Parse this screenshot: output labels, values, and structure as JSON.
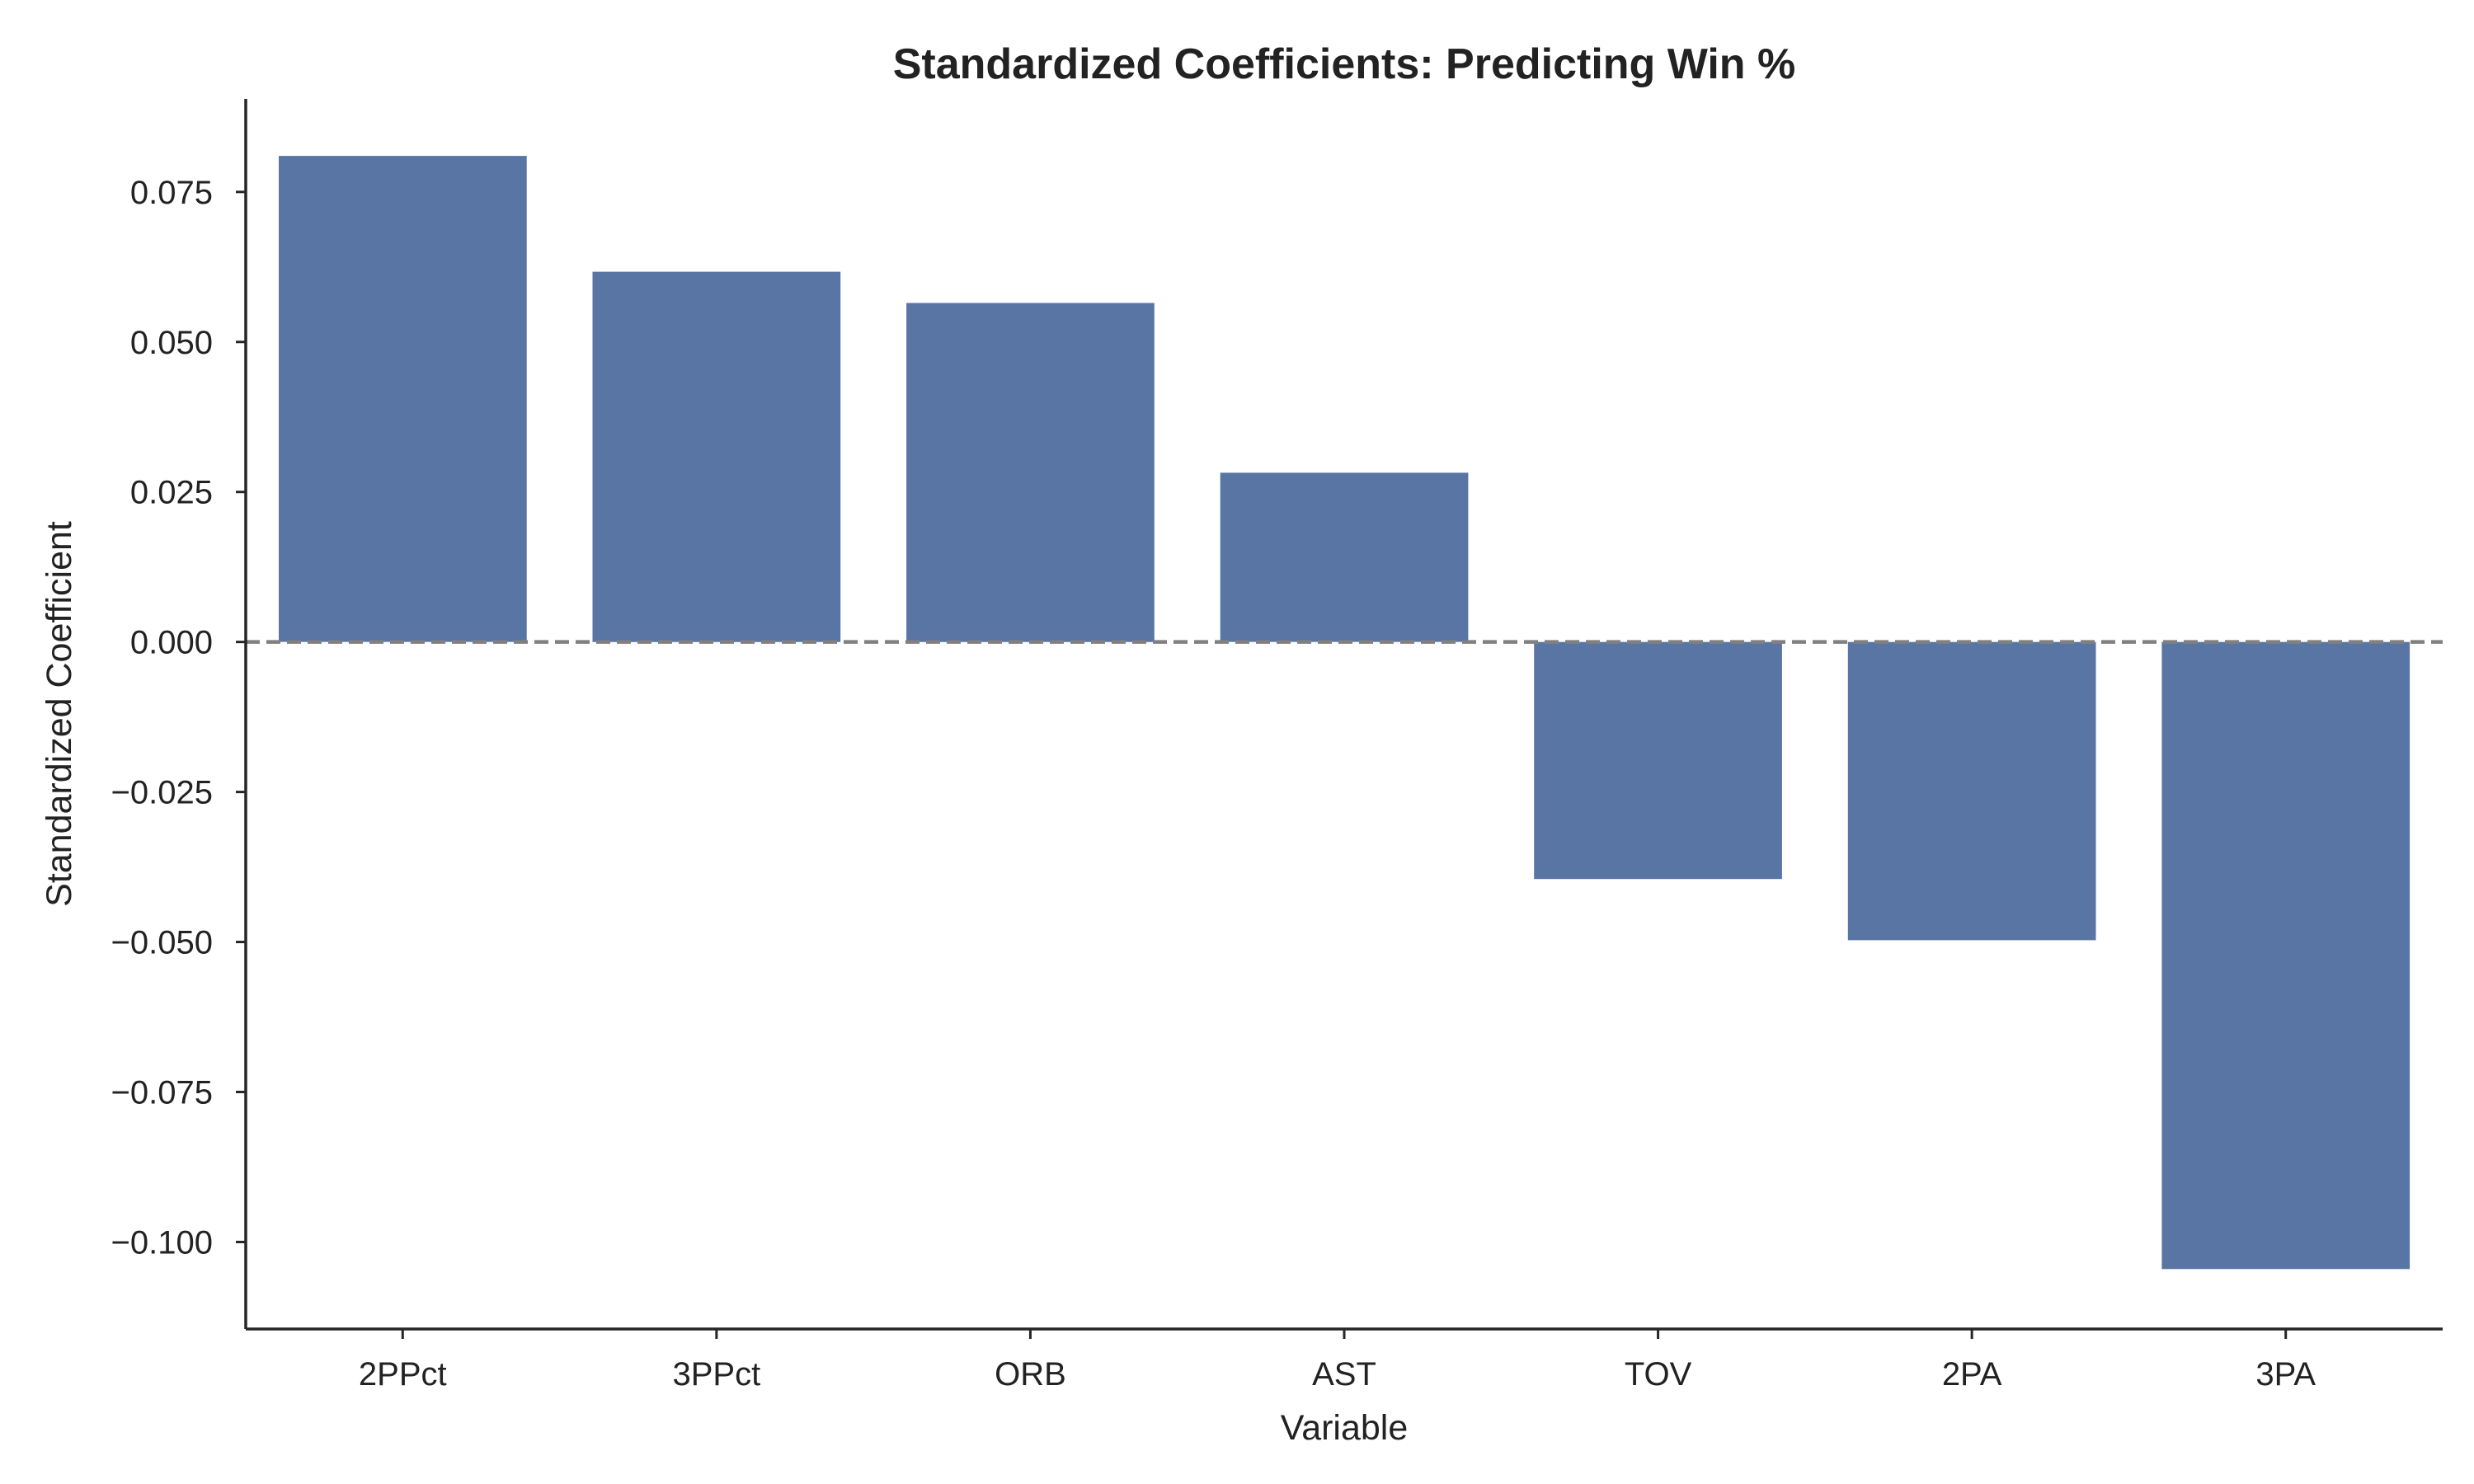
{
  "chart_data": {
    "type": "bar",
    "title": "Standardized Coefficients: Predicting Win %",
    "xlabel": "Variable",
    "ylabel": "Standardized Coefficient",
    "categories": [
      "2PPct",
      "3PPct",
      "ORB",
      "AST",
      "TOV",
      "2PA",
      "3PA"
    ],
    "values": [
      0.081,
      0.0617,
      0.0565,
      0.0282,
      -0.0395,
      -0.0497,
      -0.1045
    ],
    "ylim": [
      -0.1145,
      0.0905
    ],
    "yticks": [
      0.075,
      0.05,
      0.025,
      0.0,
      -0.025,
      -0.05,
      -0.075,
      -0.1
    ],
    "ytick_labels": [
      "0.075",
      "0.050",
      "0.025",
      "0.000",
      "−0.025",
      "−0.050",
      "−0.075",
      "−0.100"
    ],
    "reference_line": {
      "y": 0,
      "style": "dashed",
      "color": "#808080"
    },
    "bar_color": "#5875a4",
    "axis_color": "#262626",
    "grid": false,
    "legend": false
  }
}
